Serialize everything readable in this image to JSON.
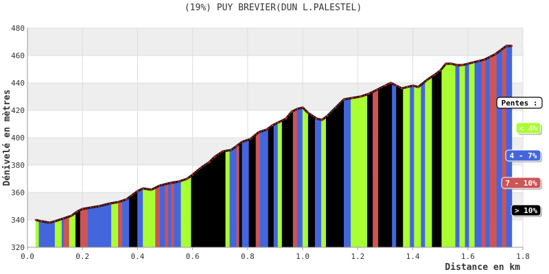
{
  "chart_data": {
    "type": "area",
    "title": "(19%) PUY BREVIER(DUN L.PALESTEL)",
    "xlabel": "Distance en km",
    "ylabel": "Dénivelé en mètres",
    "xlim": [
      0,
      1.8
    ],
    "ylim": [
      320,
      480
    ],
    "x_ticks": [
      "0.0",
      "0.2",
      "0.4",
      "0.6",
      "0.8",
      "1.0",
      "1.2",
      "1.4",
      "1.6",
      "1.8"
    ],
    "y_ticks": [
      "320",
      "340",
      "360",
      "380",
      "400",
      "420",
      "440",
      "460",
      "480"
    ],
    "grid": true,
    "legend_position": "right",
    "legend": {
      "title": "Pentes :",
      "entries": [
        {
          "label": "< 4%",
          "color": "#aaff33"
        },
        {
          "label": "4 - 7%",
          "color": "#4466dd"
        },
        {
          "label": "7 - 10%",
          "color": "#cc5555"
        },
        {
          "label": "> 10%",
          "color": "#000000"
        }
      ]
    },
    "profile_x": [
      0.03,
      0.05,
      0.08,
      0.1,
      0.13,
      0.16,
      0.18,
      0.2,
      0.23,
      0.26,
      0.3,
      0.33,
      0.36,
      0.38,
      0.4,
      0.42,
      0.45,
      0.48,
      0.52,
      0.55,
      0.58,
      0.6,
      0.63,
      0.66,
      0.68,
      0.71,
      0.74,
      0.76,
      0.78,
      0.81,
      0.84,
      0.87,
      0.89,
      0.91,
      0.94,
      0.96,
      0.98,
      1.0,
      1.02,
      1.05,
      1.07,
      1.09,
      1.12,
      1.15,
      1.18,
      1.21,
      1.24,
      1.27,
      1.3,
      1.32,
      1.34,
      1.36,
      1.38,
      1.4,
      1.42,
      1.45,
      1.48,
      1.5,
      1.52,
      1.54,
      1.56,
      1.58,
      1.6,
      1.62,
      1.64,
      1.66,
      1.68,
      1.7,
      1.72,
      1.74,
      1.76
    ],
    "profile_y": [
      340,
      339,
      338,
      339,
      341,
      343,
      346,
      348,
      349,
      350,
      352,
      353,
      355,
      358,
      361,
      363,
      362,
      365,
      367,
      368,
      370,
      373,
      378,
      382,
      386,
      390,
      391,
      394,
      397,
      399,
      404,
      406,
      409,
      411,
      414,
      419,
      421,
      422,
      418,
      414,
      413,
      416,
      422,
      428,
      429,
      430,
      432,
      435,
      438,
      440,
      438,
      436,
      437,
      438,
      437,
      442,
      446,
      449,
      454,
      454,
      453,
      453,
      454,
      455,
      456,
      457,
      459,
      461,
      464,
      467,
      467
    ],
    "segments": [
      [
        0.03,
        0.042,
        "green"
      ],
      [
        0.042,
        0.1,
        "blue"
      ],
      [
        0.1,
        0.125,
        "green"
      ],
      [
        0.125,
        0.132,
        "blue"
      ],
      [
        0.132,
        0.152,
        "red"
      ],
      [
        0.152,
        0.175,
        "green"
      ],
      [
        0.175,
        0.192,
        "black"
      ],
      [
        0.192,
        0.22,
        "red"
      ],
      [
        0.22,
        0.24,
        "blue"
      ],
      [
        0.24,
        0.305,
        "blue"
      ],
      [
        0.305,
        0.33,
        "green"
      ],
      [
        0.33,
        0.345,
        "red"
      ],
      [
        0.345,
        0.37,
        "blue"
      ],
      [
        0.37,
        0.4,
        "black"
      ],
      [
        0.4,
        0.42,
        "blue"
      ],
      [
        0.42,
        0.465,
        "green"
      ],
      [
        0.465,
        0.482,
        "red"
      ],
      [
        0.482,
        0.5,
        "blue"
      ],
      [
        0.5,
        0.512,
        "red"
      ],
      [
        0.512,
        0.523,
        "blue"
      ],
      [
        0.523,
        0.533,
        "red"
      ],
      [
        0.533,
        0.558,
        "blue"
      ],
      [
        0.558,
        0.595,
        "green"
      ],
      [
        0.595,
        0.72,
        "black"
      ],
      [
        0.72,
        0.735,
        "green"
      ],
      [
        0.735,
        0.76,
        "blue"
      ],
      [
        0.76,
        0.77,
        "red"
      ],
      [
        0.77,
        0.78,
        "black"
      ],
      [
        0.78,
        0.805,
        "blue"
      ],
      [
        0.805,
        0.83,
        "black"
      ],
      [
        0.83,
        0.845,
        "red"
      ],
      [
        0.845,
        0.875,
        "blue"
      ],
      [
        0.875,
        0.895,
        "black"
      ],
      [
        0.895,
        0.91,
        "blue"
      ],
      [
        0.91,
        0.925,
        "green"
      ],
      [
        0.925,
        0.965,
        "black"
      ],
      [
        0.965,
        0.98,
        "red"
      ],
      [
        0.98,
        1.0,
        "blue"
      ],
      [
        1.0,
        1.02,
        "green"
      ],
      [
        1.02,
        1.045,
        "black"
      ],
      [
        1.045,
        1.068,
        "blue"
      ],
      [
        1.068,
        1.085,
        "green"
      ],
      [
        1.085,
        1.15,
        "black"
      ],
      [
        1.15,
        1.175,
        "blue"
      ],
      [
        1.175,
        1.235,
        "green"
      ],
      [
        1.235,
        1.255,
        "black"
      ],
      [
        1.255,
        1.275,
        "red"
      ],
      [
        1.275,
        1.325,
        "black"
      ],
      [
        1.325,
        1.34,
        "blue"
      ],
      [
        1.34,
        1.365,
        "black"
      ],
      [
        1.365,
        1.39,
        "green"
      ],
      [
        1.39,
        1.405,
        "blue"
      ],
      [
        1.405,
        1.43,
        "green"
      ],
      [
        1.43,
        1.445,
        "blue"
      ],
      [
        1.445,
        1.47,
        "green"
      ],
      [
        1.47,
        1.505,
        "black"
      ],
      [
        1.505,
        1.555,
        "green"
      ],
      [
        1.555,
        1.57,
        "blue"
      ],
      [
        1.57,
        1.59,
        "green"
      ],
      [
        1.59,
        1.605,
        "blue"
      ],
      [
        1.605,
        1.625,
        "green"
      ],
      [
        1.625,
        1.65,
        "blue"
      ],
      [
        1.65,
        1.665,
        "red"
      ],
      [
        1.665,
        1.68,
        "blue"
      ],
      [
        1.68,
        1.705,
        "red"
      ],
      [
        1.705,
        1.725,
        "blue"
      ],
      [
        1.725,
        1.74,
        "red"
      ],
      [
        1.74,
        1.76,
        "blue"
      ]
    ],
    "colors": {
      "green": "#aaff33",
      "blue": "#4466dd",
      "red": "#cc5555",
      "black": "#000000",
      "line": "#cc2222",
      "grid_band": "#eeeeee"
    }
  }
}
